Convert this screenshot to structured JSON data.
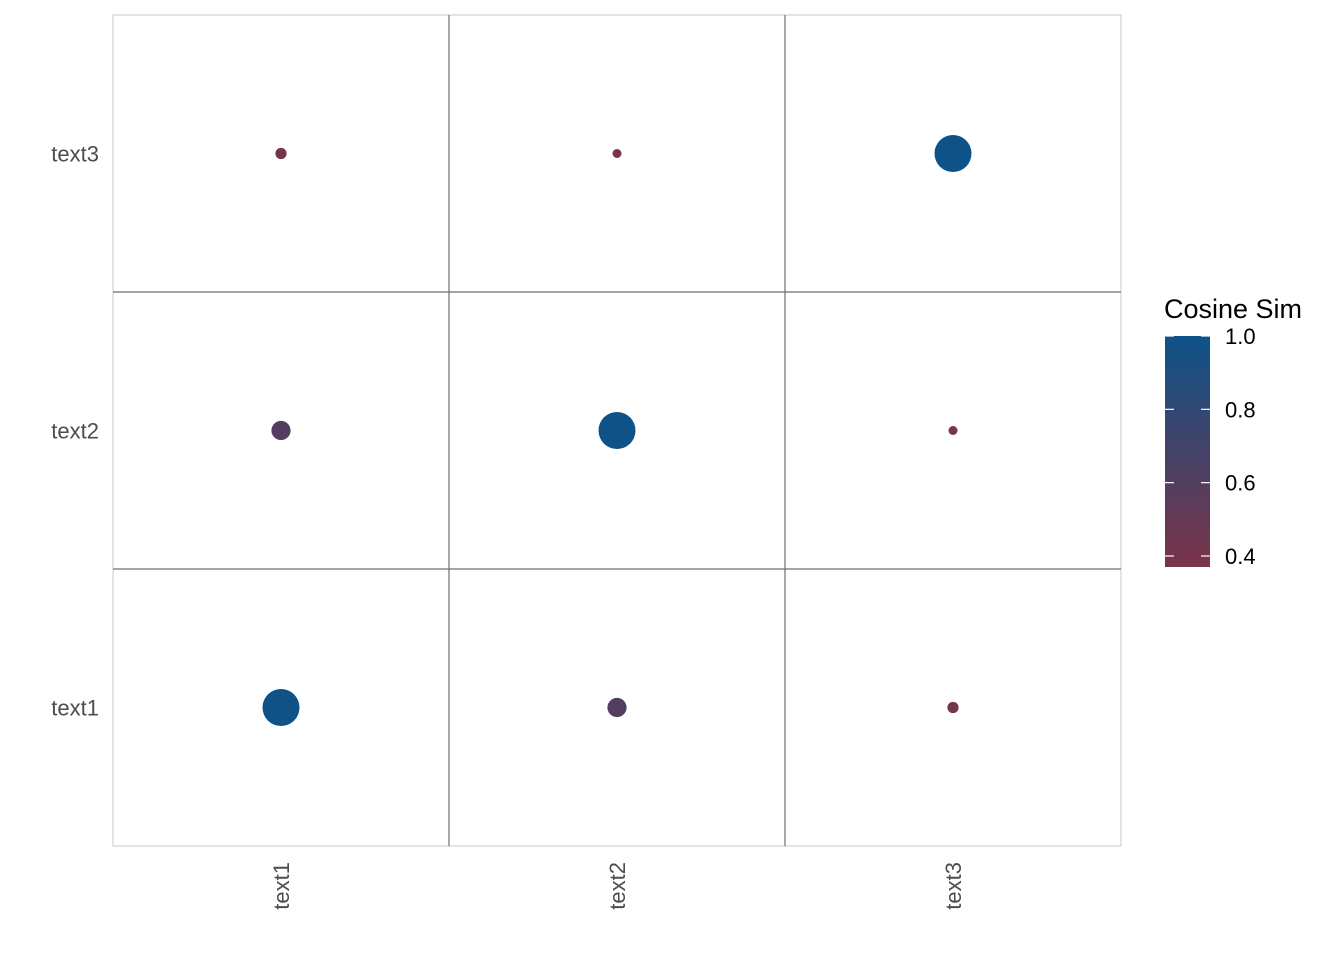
{
  "chart_data": {
    "type": "scatter",
    "x_categories": [
      "text1",
      "text2",
      "text3"
    ],
    "y_categories": [
      "text1",
      "text2",
      "text3"
    ],
    "points": [
      {
        "x": "text1",
        "y": "text1",
        "value": 1.0
      },
      {
        "x": "text2",
        "y": "text1",
        "value": 0.6
      },
      {
        "x": "text3",
        "y": "text1",
        "value": 0.42
      },
      {
        "x": "text1",
        "y": "text2",
        "value": 0.6
      },
      {
        "x": "text2",
        "y": "text2",
        "value": 1.0
      },
      {
        "x": "text3",
        "y": "text2",
        "value": 0.37
      },
      {
        "x": "text1",
        "y": "text3",
        "value": 0.42
      },
      {
        "x": "text2",
        "y": "text3",
        "value": 0.37
      },
      {
        "x": "text3",
        "y": "text3",
        "value": 1.0
      }
    ],
    "legend": {
      "title": "Cosine Sim",
      "ticks": [
        1.0,
        0.8,
        0.6,
        0.4
      ],
      "tick_labels": [
        "1.0",
        "0.8",
        "0.6",
        "0.4"
      ],
      "range": [
        0.37,
        1.0
      ],
      "low_color": "#7a3348",
      "high_color": "#0e5288",
      "placement": "right"
    },
    "grid": true,
    "xlabel": "",
    "ylabel": ""
  }
}
